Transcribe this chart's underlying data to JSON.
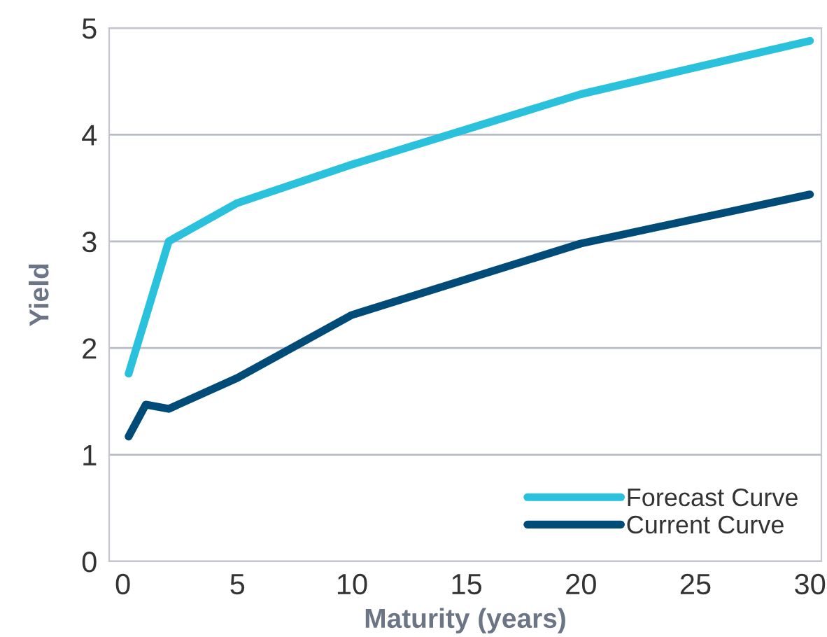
{
  "chart_data": {
    "type": "line",
    "xlabel": "Maturity (years)",
    "ylabel": "Yield",
    "xlim": [
      -0.6,
      30.5
    ],
    "ylim": [
      0,
      5
    ],
    "xticks": [
      0,
      5,
      10,
      15,
      20,
      25,
      30
    ],
    "yticks": [
      0,
      1,
      2,
      3,
      4,
      5
    ],
    "grid": "y",
    "legend": "bottom right",
    "marker": "none",
    "line_style": "solid",
    "series": [
      {
        "name": "Forecast Curve",
        "color": "#29c1dc",
        "x": [
          0.25,
          2,
          5,
          10,
          20,
          30
        ],
        "values": [
          1.76,
          3.0,
          3.36,
          3.72,
          4.38,
          4.88
        ]
      },
      {
        "name": "Current Curve",
        "color": "#004b78",
        "x": [
          0.25,
          1,
          2,
          5,
          10,
          20,
          30
        ],
        "values": [
          1.17,
          1.47,
          1.43,
          1.72,
          2.31,
          2.98,
          3.44
        ]
      }
    ]
  }
}
